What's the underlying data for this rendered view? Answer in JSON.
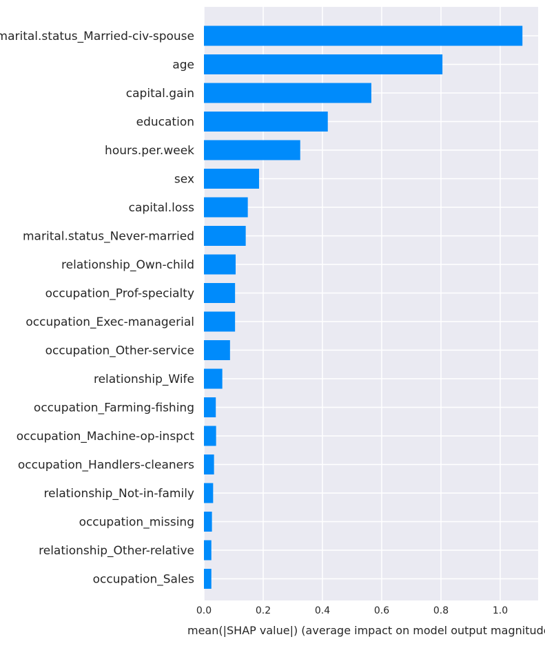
{
  "chart_data": {
    "type": "bar",
    "orientation": "horizontal",
    "title": "",
    "ylabel": "",
    "xlabel": "mean(|SHAP value|) (average impact on model output magnitude)",
    "xlim": [
      0,
      1.13
    ],
    "xticks": [
      0.0,
      0.2,
      0.4,
      0.6,
      0.8,
      1.0
    ],
    "xtick_labels": [
      "0.0",
      "0.2",
      "0.4",
      "0.6",
      "0.8",
      "1.0"
    ],
    "grid": true,
    "colors": {
      "bar": "#008bfb",
      "background": "#eaeaf2",
      "grid": "#ffffff"
    },
    "categories": [
      "marital.status_Married-civ-spouse",
      "age",
      "capital.gain",
      "education",
      "hours.per.week",
      "sex",
      "capital.loss",
      "marital.status_Never-married",
      "relationship_Own-child",
      "occupation_Prof-specialty",
      "occupation_Exec-managerial",
      "occupation_Other-service",
      "relationship_Wife",
      "occupation_Farming-fishing",
      "occupation_Machine-op-inspct",
      "occupation_Handlers-cleaners",
      "relationship_Not-in-family",
      "occupation_missing",
      "relationship_Other-relative",
      "occupation_Sales"
    ],
    "values": [
      1.075,
      0.805,
      0.565,
      0.418,
      0.325,
      0.186,
      0.148,
      0.141,
      0.107,
      0.105,
      0.105,
      0.088,
      0.062,
      0.04,
      0.041,
      0.034,
      0.031,
      0.027,
      0.025,
      0.025
    ]
  }
}
